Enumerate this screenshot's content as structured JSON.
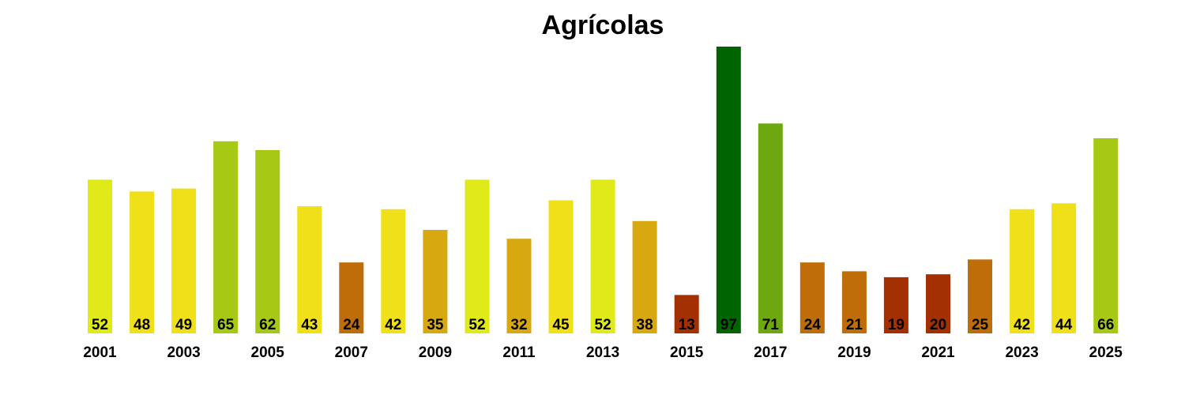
{
  "chart_data": {
    "type": "bar",
    "title": "Agrícolas",
    "xlabel": "",
    "ylabel": "",
    "categories": [
      "2001",
      "2002",
      "2003",
      "2004",
      "2005",
      "2006",
      "2007",
      "2008",
      "2009",
      "2010",
      "2011",
      "2012",
      "2013",
      "2014",
      "2015",
      "2016",
      "2017",
      "2018",
      "2019",
      "2020",
      "2021",
      "2022",
      "2023",
      "2024",
      "2025"
    ],
    "values": [
      52,
      48,
      49,
      65,
      62,
      43,
      24,
      42,
      35,
      52,
      32,
      45,
      52,
      38,
      13,
      97,
      71,
      24,
      21,
      19,
      20,
      25,
      42,
      44,
      66
    ],
    "tick_labels": [
      "2001",
      "",
      "2003",
      "",
      "2005",
      "",
      "2007",
      "",
      "2009",
      "",
      "2011",
      "",
      "2013",
      "",
      "2015",
      "",
      "2017",
      "",
      "2019",
      "",
      "2021",
      "",
      "2023",
      "",
      "2025"
    ],
    "colors": [
      "#e0ea18",
      "#f0e01a",
      "#f0e01a",
      "#a6c916",
      "#a6c916",
      "#f0e01a",
      "#bf6d08",
      "#f0e01a",
      "#d8a810",
      "#e0ea18",
      "#d8a810",
      "#f0e01a",
      "#e0ea18",
      "#d8a810",
      "#a23000",
      "#006400",
      "#6ea810",
      "#bf6d08",
      "#bf6d08",
      "#a23000",
      "#a23000",
      "#bf6d08",
      "#f0e01a",
      "#f0e01a",
      "#a6c916"
    ],
    "ylim": [
      0,
      97
    ],
    "grid": false,
    "legend": "none",
    "data_labels": "inside-bottom"
  }
}
